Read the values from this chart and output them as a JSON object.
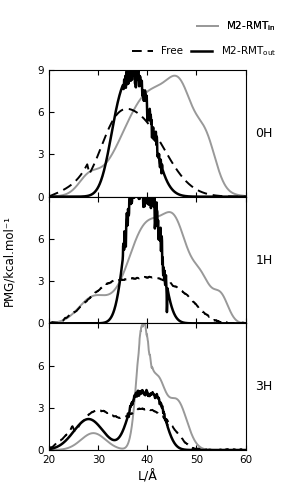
{
  "xlim": [
    20,
    60
  ],
  "ylim_0H": [
    0,
    9
  ],
  "ylim_1H": [
    0,
    9
  ],
  "ylim_3H": [
    0,
    9
  ],
  "xticks": [
    20,
    30,
    40,
    50,
    60
  ],
  "yticks_0H": [
    0,
    3,
    6,
    9
  ],
  "yticks_1H": [
    0,
    3,
    6
  ],
  "yticks_3H": [
    0,
    3,
    6
  ],
  "xlabel": "L/Å",
  "ylabel": "PMG/kcal.mol⁻¹",
  "panel_labels": [
    "0H",
    "1H",
    "3H"
  ],
  "free_color": "#000000",
  "rmtout_color": "#000000",
  "rmtin_color": "#999999",
  "free_lw": 1.4,
  "rmtout_lw": 1.8,
  "rmtin_lw": 1.4,
  "fig_width": 3.07,
  "fig_height": 5.0,
  "dpi": 100
}
